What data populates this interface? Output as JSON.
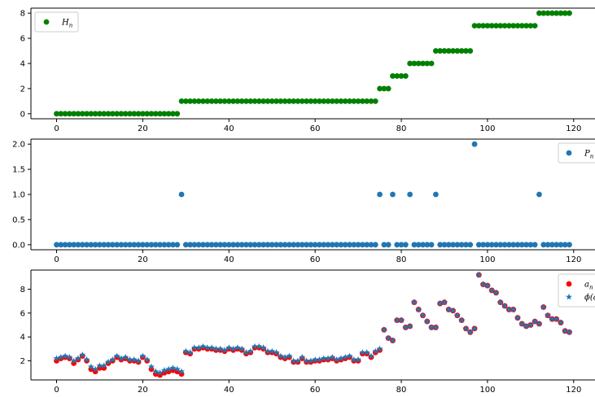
{
  "colors": {
    "green": "#008000",
    "blue": "#1f77b4",
    "red": "#ff0000",
    "axis": "#000000"
  },
  "chart_data": [
    {
      "type": "scatter",
      "title": "",
      "xlabel": "",
      "ylabel": "",
      "xlim": [
        -5.95,
        124.95
      ],
      "ylim": [
        -0.4,
        8.4
      ],
      "xticks": [
        0,
        20,
        40,
        60,
        80,
        100,
        120
      ],
      "yticks": [
        0,
        2,
        4,
        6,
        8
      ],
      "tick_labels_x": [
        "0",
        "20",
        "40",
        "60",
        "80",
        "100",
        "120"
      ],
      "tick_labels_y": [
        "0",
        "2",
        "4",
        "6",
        "8"
      ],
      "grid": false,
      "legend": "upper-left",
      "series": [
        {
          "name": "H_n",
          "label_main": "H",
          "label_sub": "n",
          "color": "#008000",
          "marker": "circle",
          "x": [
            0,
            1,
            2,
            3,
            4,
            5,
            6,
            7,
            8,
            9,
            10,
            11,
            12,
            13,
            14,
            15,
            16,
            17,
            18,
            19,
            20,
            21,
            22,
            23,
            24,
            25,
            26,
            27,
            28,
            29,
            30,
            31,
            32,
            33,
            34,
            35,
            36,
            37,
            38,
            39,
            40,
            41,
            42,
            43,
            44,
            45,
            46,
            47,
            48,
            49,
            50,
            51,
            52,
            53,
            54,
            55,
            56,
            57,
            58,
            59,
            60,
            61,
            62,
            63,
            64,
            65,
            66,
            67,
            68,
            69,
            70,
            71,
            72,
            73,
            74,
            75,
            76,
            77,
            78,
            79,
            80,
            81,
            82,
            83,
            84,
            85,
            86,
            87,
            88,
            89,
            90,
            91,
            92,
            93,
            94,
            95,
            96,
            97,
            98,
            99,
            100,
            101,
            102,
            103,
            104,
            105,
            106,
            107,
            108,
            109,
            110,
            111,
            112,
            113,
            114,
            115,
            116,
            117,
            118,
            119
          ],
          "y": [
            0,
            0,
            0,
            0,
            0,
            0,
            0,
            0,
            0,
            0,
            0,
            0,
            0,
            0,
            0,
            0,
            0,
            0,
            0,
            0,
            0,
            0,
            0,
            0,
            0,
            0,
            0,
            0,
            0,
            1,
            1,
            1,
            1,
            1,
            1,
            1,
            1,
            1,
            1,
            1,
            1,
            1,
            1,
            1,
            1,
            1,
            1,
            1,
            1,
            1,
            1,
            1,
            1,
            1,
            1,
            1,
            1,
            1,
            1,
            1,
            1,
            1,
            1,
            1,
            1,
            1,
            1,
            1,
            1,
            1,
            1,
            1,
            1,
            1,
            1,
            2,
            2,
            2,
            3,
            3,
            3,
            3,
            4,
            4,
            4,
            4,
            4,
            4,
            5,
            5,
            5,
            5,
            5,
            5,
            5,
            5,
            5,
            7,
            7,
            7,
            7,
            7,
            7,
            7,
            7,
            7,
            7,
            7,
            7,
            7,
            7,
            7,
            8,
            8,
            8,
            8,
            8,
            8,
            8,
            8
          ]
        }
      ]
    },
    {
      "type": "scatter",
      "title": "",
      "xlabel": "",
      "ylabel": "",
      "xlim": [
        -5.95,
        124.95
      ],
      "ylim": [
        -0.1,
        2.1
      ],
      "xticks": [
        0,
        20,
        40,
        60,
        80,
        100,
        120
      ],
      "yticks": [
        0.0,
        0.5,
        1.0,
        1.5,
        2.0
      ],
      "tick_labels_x": [
        "0",
        "20",
        "40",
        "60",
        "80",
        "100",
        "120"
      ],
      "tick_labels_y": [
        "0.0",
        "0.5",
        "1.0",
        "1.5",
        "2.0"
      ],
      "grid": false,
      "legend": "upper-right",
      "series": [
        {
          "name": "P_n",
          "label_main": "P",
          "label_sub": "n",
          "color": "#1f77b4",
          "marker": "circle",
          "x": [
            0,
            1,
            2,
            3,
            4,
            5,
            6,
            7,
            8,
            9,
            10,
            11,
            12,
            13,
            14,
            15,
            16,
            17,
            18,
            19,
            20,
            21,
            22,
            23,
            24,
            25,
            26,
            27,
            28,
            29,
            30,
            31,
            32,
            33,
            34,
            35,
            36,
            37,
            38,
            39,
            40,
            41,
            42,
            43,
            44,
            45,
            46,
            47,
            48,
            49,
            50,
            51,
            52,
            53,
            54,
            55,
            56,
            57,
            58,
            59,
            60,
            61,
            62,
            63,
            64,
            65,
            66,
            67,
            68,
            69,
            70,
            71,
            72,
            73,
            74,
            75,
            76,
            77,
            78,
            79,
            80,
            81,
            82,
            83,
            84,
            85,
            86,
            87,
            88,
            89,
            90,
            91,
            92,
            93,
            94,
            95,
            96,
            97,
            98,
            99,
            100,
            101,
            102,
            103,
            104,
            105,
            106,
            107,
            108,
            109,
            110,
            111,
            112,
            113,
            114,
            115,
            116,
            117,
            118,
            119
          ],
          "y": [
            0,
            0,
            0,
            0,
            0,
            0,
            0,
            0,
            0,
            0,
            0,
            0,
            0,
            0,
            0,
            0,
            0,
            0,
            0,
            0,
            0,
            0,
            0,
            0,
            0,
            0,
            0,
            0,
            0,
            1,
            0,
            0,
            0,
            0,
            0,
            0,
            0,
            0,
            0,
            0,
            0,
            0,
            0,
            0,
            0,
            0,
            0,
            0,
            0,
            0,
            0,
            0,
            0,
            0,
            0,
            0,
            0,
            0,
            0,
            0,
            0,
            0,
            0,
            0,
            0,
            0,
            0,
            0,
            0,
            0,
            0,
            0,
            0,
            0,
            0,
            1,
            0,
            0,
            1,
            0,
            0,
            0,
            1,
            0,
            0,
            0,
            0,
            0,
            1,
            0,
            0,
            0,
            0,
            0,
            0,
            0,
            0,
            2,
            0,
            0,
            0,
            0,
            0,
            0,
            0,
            0,
            0,
            0,
            0,
            0,
            0,
            0,
            1,
            0,
            0,
            0,
            0,
            0,
            0,
            0
          ]
        }
      ]
    },
    {
      "type": "scatter",
      "title": "",
      "xlabel": "",
      "ylabel": "",
      "xlim": [
        -5.95,
        124.95
      ],
      "ylim": [
        0.4,
        9.6
      ],
      "xticks": [
        0,
        20,
        40,
        60,
        80,
        100,
        120
      ],
      "yticks": [
        2,
        4,
        6,
        8
      ],
      "tick_labels_x": [
        "0",
        "20",
        "40",
        "60",
        "80",
        "100",
        "120"
      ],
      "tick_labels_y": [
        "2",
        "4",
        "6",
        "8"
      ],
      "grid": false,
      "legend": "upper-right",
      "series": [
        {
          "name": "a_n",
          "label_main": "a",
          "label_sub": "n",
          "color": "#ff0000",
          "marker": "circle",
          "x": [
            0,
            1,
            2,
            3,
            4,
            5,
            6,
            7,
            8,
            9,
            10,
            11,
            12,
            13,
            14,
            15,
            16,
            17,
            18,
            19,
            20,
            21,
            22,
            23,
            24,
            25,
            26,
            27,
            28,
            29,
            30,
            31,
            32,
            33,
            34,
            35,
            36,
            37,
            38,
            39,
            40,
            41,
            42,
            43,
            44,
            45,
            46,
            47,
            48,
            49,
            50,
            51,
            52,
            53,
            54,
            55,
            56,
            57,
            58,
            59,
            60,
            61,
            62,
            63,
            64,
            65,
            66,
            67,
            68,
            69,
            70,
            71,
            72,
            73,
            74,
            75,
            76,
            77,
            78,
            79,
            80,
            81,
            82,
            83,
            84,
            85,
            86,
            87,
            88,
            89,
            90,
            91,
            92,
            93,
            94,
            95,
            96,
            97,
            98,
            99,
            100,
            101,
            102,
            103,
            104,
            105,
            106,
            107,
            108,
            109,
            110,
            111,
            112,
            113,
            114,
            115,
            116,
            117,
            118,
            119
          ],
          "y": [
            2.0,
            2.2,
            2.3,
            2.2,
            1.8,
            2.1,
            2.4,
            2.0,
            1.3,
            1.1,
            1.4,
            1.4,
            1.8,
            2.0,
            2.3,
            2.1,
            2.2,
            2.0,
            2.0,
            1.9,
            2.3,
            2.0,
            1.3,
            0.9,
            0.8,
            1.0,
            1.1,
            1.2,
            1.1,
            0.9,
            2.7,
            2.6,
            3.0,
            3.0,
            3.1,
            3.0,
            3.0,
            2.9,
            2.9,
            2.8,
            3.0,
            2.9,
            3.0,
            2.9,
            2.6,
            2.7,
            3.1,
            3.1,
            3.0,
            2.7,
            2.7,
            2.6,
            2.3,
            2.2,
            2.3,
            1.9,
            1.9,
            2.2,
            1.9,
            1.9,
            2.0,
            2.0,
            2.1,
            2.1,
            2.2,
            2.0,
            2.1,
            2.2,
            2.3,
            2.0,
            2.0,
            2.6,
            2.6,
            2.3,
            2.7,
            2.9,
            4.6,
            3.9,
            3.7,
            5.4,
            5.4,
            4.8,
            4.9,
            6.9,
            6.3,
            5.8,
            5.3,
            4.8,
            4.8,
            6.8,
            6.9,
            6.3,
            6.2,
            5.8,
            5.4,
            4.7,
            4.4,
            4.7,
            9.2,
            8.4,
            8.3,
            7.9,
            7.7,
            6.9,
            6.6,
            6.3,
            6.3,
            5.6,
            5.1,
            4.9,
            5.0,
            5.3,
            5.1,
            6.5,
            5.8,
            5.5,
            5.5,
            5.2,
            4.5,
            4.4
          ]
        },
        {
          "name": "phi(a_n)",
          "label_main": "ϕ(a",
          "label_sub": "n",
          "label_tail": ")",
          "color": "#1f77b4",
          "marker": "star",
          "x": [
            0,
            1,
            2,
            3,
            4,
            5,
            6,
            7,
            8,
            9,
            10,
            11,
            12,
            13,
            14,
            15,
            16,
            17,
            18,
            19,
            20,
            21,
            22,
            23,
            24,
            25,
            26,
            27,
            28,
            29,
            30,
            31,
            32,
            33,
            34,
            35,
            36,
            37,
            38,
            39,
            40,
            41,
            42,
            43,
            44,
            45,
            46,
            47,
            48,
            49,
            50,
            51,
            52,
            53,
            54,
            55,
            56,
            57,
            58,
            59,
            60,
            61,
            62,
            63,
            64,
            65,
            66,
            67,
            68,
            69,
            70,
            71,
            72,
            73,
            74,
            75,
            76,
            77,
            78,
            79,
            80,
            81,
            82,
            83,
            84,
            85,
            86,
            87,
            88,
            89,
            90,
            91,
            92,
            93,
            94,
            95,
            96,
            97,
            98,
            99,
            100,
            101,
            102,
            103,
            104,
            105,
            106,
            107,
            108,
            109,
            110,
            111,
            112,
            113,
            114,
            115,
            116,
            117,
            118,
            119
          ],
          "y": [
            2.2,
            2.3,
            2.4,
            2.3,
            2.0,
            2.2,
            2.5,
            2.1,
            1.5,
            1.3,
            1.6,
            1.6,
            1.9,
            2.1,
            2.4,
            2.2,
            2.3,
            2.1,
            2.1,
            2.0,
            2.4,
            2.1,
            1.5,
            1.1,
            1.0,
            1.2,
            1.3,
            1.4,
            1.3,
            1.1,
            2.8,
            2.7,
            3.1,
            3.1,
            3.2,
            3.1,
            3.1,
            3.0,
            3.0,
            2.9,
            3.1,
            3.0,
            3.1,
            3.0,
            2.7,
            2.8,
            3.2,
            3.2,
            3.1,
            2.8,
            2.8,
            2.7,
            2.4,
            2.3,
            2.4,
            2.0,
            2.0,
            2.3,
            2.0,
            2.0,
            2.1,
            2.1,
            2.2,
            2.2,
            2.3,
            2.1,
            2.2,
            2.3,
            2.4,
            2.1,
            2.1,
            2.7,
            2.7,
            2.4,
            2.8,
            3.0,
            4.6,
            3.9,
            3.7,
            5.4,
            5.4,
            4.8,
            4.9,
            6.9,
            6.3,
            5.8,
            5.3,
            4.8,
            4.8,
            6.8,
            6.9,
            6.3,
            6.2,
            5.8,
            5.4,
            4.7,
            4.4,
            4.7,
            9.2,
            8.4,
            8.3,
            7.9,
            7.7,
            6.9,
            6.6,
            6.3,
            6.3,
            5.6,
            5.1,
            4.9,
            5.0,
            5.3,
            5.1,
            6.5,
            5.8,
            5.5,
            5.5,
            5.2,
            4.5,
            4.4
          ]
        }
      ]
    }
  ]
}
